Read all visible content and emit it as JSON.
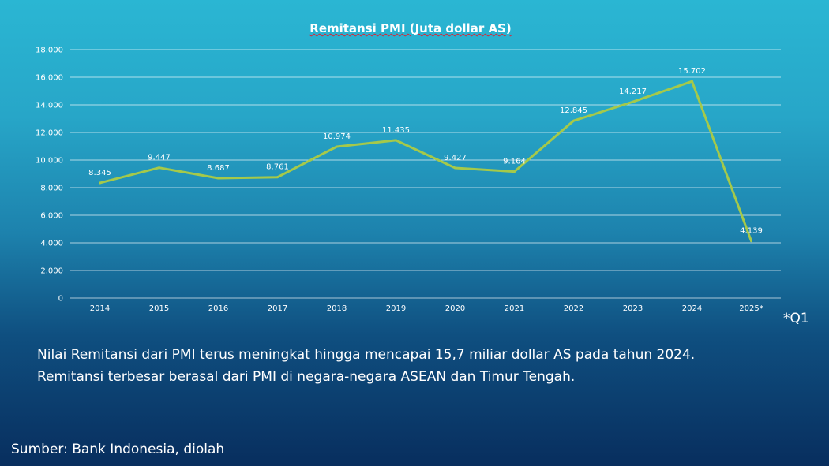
{
  "chart_data": {
    "type": "line",
    "title": "Remitansi PMI (Juta dollar AS)",
    "categories": [
      "2014",
      "2015",
      "2016",
      "2017",
      "2018",
      "2019",
      "2020",
      "2021",
      "2022",
      "2023",
      "2024",
      "2025*"
    ],
    "series": [
      {
        "values": [
          8345,
          9447,
          8687,
          8761,
          10974,
          11435,
          9427,
          9164,
          12845,
          14217,
          15702,
          4139
        ],
        "data_labels": [
          "8.345",
          "9.447",
          "8.687",
          "8.761",
          "10.974",
          "11.435",
          "9.427",
          "9.164",
          "12.845",
          "14.217",
          "15.702",
          "4.139"
        ]
      }
    ],
    "ylim": [
      0,
      18000
    ],
    "yticks": [
      0,
      2000,
      4000,
      6000,
      8000,
      10000,
      12000,
      14000,
      16000,
      18000
    ],
    "ytick_labels": [
      "0",
      "2.000",
      "4.000",
      "6.000",
      "8.000",
      "10.000",
      "12.000",
      "14.000",
      "16.000",
      "18.000"
    ],
    "grid": true,
    "line_color": "#a5c94a",
    "grid_color": "#ffffff"
  },
  "footnote": "*Q1",
  "description": {
    "line1": "Nilai Remitansi dari PMI terus meningkat hingga mencapai 15,7 miliar dollar AS pada tahun 2024.",
    "line2": "Remitansi terbesar berasal dari PMI di negara-negara ASEAN dan Timur Tengah."
  },
  "source": "Sumber: Bank Indonesia, diolah"
}
